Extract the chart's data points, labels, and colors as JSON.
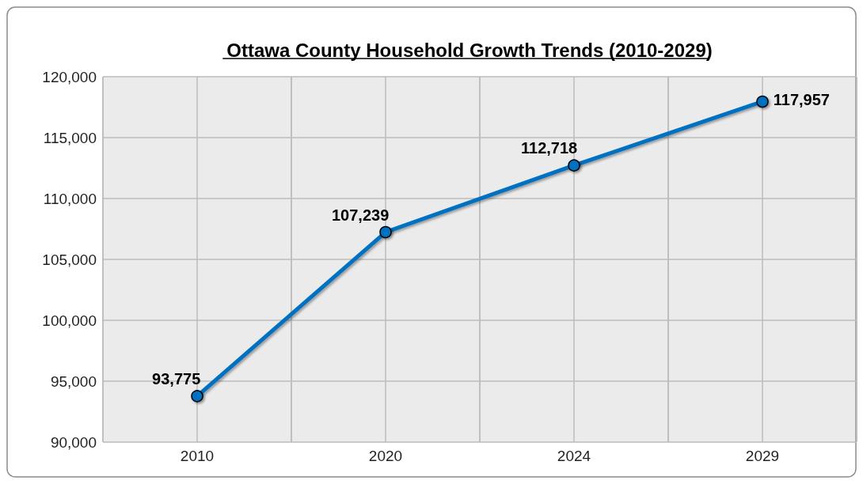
{
  "chart_data": {
    "type": "line",
    "title": "Ottawa County Household Growth Trends (2010-2029)",
    "categories": [
      "2010",
      "2020",
      "2024",
      "2029"
    ],
    "series": [
      {
        "color": "#0070c0",
        "values": [
          93775,
          107239,
          112718,
          117957
        ],
        "value_labels": [
          "93,775",
          "107,239",
          "112,718",
          "117,957"
        ]
      }
    ],
    "ylim": [
      90000,
      120000
    ],
    "yticks": [
      {
        "value": 90000,
        "label": "90,000"
      },
      {
        "value": 95000,
        "label": "95,000"
      },
      {
        "value": 100000,
        "label": "100,000"
      },
      {
        "value": 105000,
        "label": "105,000"
      },
      {
        "value": 110000,
        "label": "110,000"
      },
      {
        "value": 115000,
        "label": "115,000"
      },
      {
        "value": 120000,
        "label": "120,000"
      }
    ],
    "grid": true,
    "marker": "circle",
    "line_style": "solid"
  }
}
